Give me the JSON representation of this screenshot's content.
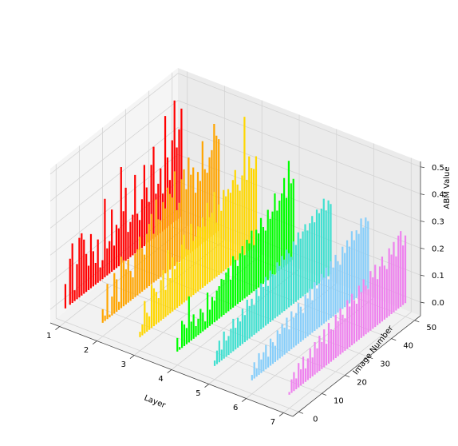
{
  "chart_data": {
    "type": "bar",
    "projection": "3d",
    "xlabel": "Layer",
    "ylabel": "Image Number",
    "zlabel": "ABM Value",
    "xticks": [
      "1",
      "2",
      "3",
      "4",
      "5",
      "6",
      "7"
    ],
    "yticks": [
      "0",
      "10",
      "20",
      "30",
      "40",
      "50"
    ],
    "zticks": [
      "0.0",
      "0.1",
      "0.2",
      "0.3",
      "0.4",
      "0.5"
    ],
    "xlim": [
      0.75,
      7.25
    ],
    "ylim": [
      -2.5,
      52.5
    ],
    "zlim": [
      -0.05,
      0.52
    ],
    "grid": true,
    "series": [
      {
        "layer": 1,
        "color": "#ff0000",
        "values": [
          0.09,
          0.0,
          0.17,
          0.22,
          0.04,
          0.13,
          0.22,
          0.23,
          0.2,
          0.14,
          0.09,
          0.2,
          0.13,
          0.08,
          0.16,
          0.05,
          0.07,
          0.29,
          0.1,
          0.12,
          0.23,
          0.09,
          0.16,
          0.14,
          0.36,
          0.19,
          0.27,
          0.1,
          0.13,
          0.15,
          0.29,
          0.14,
          0.11,
          0.18,
          0.3,
          0.21,
          0.15,
          0.28,
          0.34,
          0.16,
          0.19,
          0.24,
          0.14,
          0.42,
          0.26,
          0.17,
          0.31,
          0.45,
          0.27,
          0.33,
          0.4
        ]
      },
      {
        "layer": 2,
        "color": "#ffa500",
        "values": [
          0.05,
          0.02,
          0.13,
          0.01,
          0.07,
          0.15,
          0.12,
          0.03,
          0.19,
          0.17,
          0.13,
          0.16,
          0.11,
          0.08,
          0.16,
          0.17,
          0.21,
          0.16,
          0.13,
          0.2,
          0.23,
          0.26,
          0.18,
          0.3,
          0.22,
          0.21,
          0.27,
          0.24,
          0.31,
          0.28,
          0.26,
          0.35,
          0.2,
          0.22,
          0.3,
          0.33,
          0.25,
          0.36,
          0.29,
          0.31,
          0.21,
          0.28,
          0.24,
          0.38,
          0.27,
          0.25,
          0.3,
          0.32,
          0.41,
          0.36,
          0.34
        ]
      },
      {
        "layer": 3,
        "color": "#ffd700",
        "values": [
          0.02,
          0.04,
          0.12,
          0.07,
          0.05,
          0.16,
          0.14,
          0.12,
          0.09,
          0.15,
          0.18,
          0.1,
          0.24,
          0.13,
          0.2,
          0.15,
          0.17,
          0.16,
          0.22,
          0.25,
          0.19,
          0.18,
          0.27,
          0.2,
          0.21,
          0.24,
          0.23,
          0.26,
          0.22,
          0.3,
          0.24,
          0.25,
          0.32,
          0.2,
          0.26,
          0.23,
          0.3,
          0.27,
          0.29,
          0.27,
          0.31,
          0.34,
          0.28,
          0.25,
          0.3,
          0.51,
          0.27,
          0.35,
          0.3,
          0.29,
          0.33
        ]
      },
      {
        "layer": 4,
        "color": "#00ff00",
        "values": [
          0.05,
          0.01,
          0.1,
          0.08,
          0.06,
          0.17,
          0.07,
          0.09,
          0.04,
          0.06,
          0.09,
          0.07,
          0.03,
          0.13,
          0.06,
          0.1,
          0.08,
          0.11,
          0.12,
          0.14,
          0.13,
          0.15,
          0.16,
          0.11,
          0.19,
          0.17,
          0.14,
          0.18,
          0.2,
          0.16,
          0.21,
          0.19,
          0.23,
          0.17,
          0.22,
          0.2,
          0.25,
          0.21,
          0.19,
          0.26,
          0.22,
          0.24,
          0.3,
          0.23,
          0.26,
          0.28,
          0.33,
          0.25,
          0.38,
          0.29,
          0.3
        ]
      },
      {
        "layer": 5,
        "color": "#40e0d0",
        "values": [
          0.02,
          0.05,
          0.08,
          0.04,
          0.1,
          0.06,
          0.07,
          0.09,
          0.12,
          0.08,
          0.11,
          0.09,
          0.13,
          0.1,
          0.15,
          0.12,
          0.14,
          0.11,
          0.16,
          0.13,
          0.17,
          0.15,
          0.18,
          0.14,
          0.19,
          0.17,
          0.16,
          0.2,
          0.18,
          0.21,
          0.19,
          0.22,
          0.2,
          0.18,
          0.23,
          0.21,
          0.25,
          0.22,
          0.24,
          0.26,
          0.23,
          0.25,
          0.27,
          0.24,
          0.28,
          0.26,
          0.27,
          0.3,
          0.25,
          0.28,
          0.26
        ]
      },
      {
        "layer": 6,
        "color": "#87cefa",
        "values": [
          0.02,
          0.06,
          0.03,
          0.08,
          0.05,
          0.07,
          0.09,
          0.04,
          0.1,
          0.08,
          0.06,
          0.11,
          0.09,
          0.12,
          0.1,
          0.13,
          0.08,
          0.14,
          0.11,
          0.12,
          0.15,
          0.13,
          0.1,
          0.16,
          0.14,
          0.17,
          0.12,
          0.18,
          0.15,
          0.16,
          0.19,
          0.17,
          0.2,
          0.15,
          0.21,
          0.18,
          0.22,
          0.19,
          0.17,
          0.23,
          0.2,
          0.24,
          0.21,
          0.26,
          0.22,
          0.25,
          0.23,
          0.28,
          0.24,
          0.27,
          0.25
        ]
      },
      {
        "layer": 7,
        "color": "#ee82ee",
        "values": [
          0.01,
          0.05,
          0.07,
          0.04,
          0.09,
          0.06,
          0.1,
          0.05,
          0.08,
          0.11,
          0.07,
          0.12,
          0.09,
          0.13,
          0.1,
          0.14,
          0.08,
          0.15,
          0.12,
          0.11,
          0.16,
          0.13,
          0.17,
          0.14,
          0.12,
          0.18,
          0.15,
          0.19,
          0.16,
          0.14,
          0.2,
          0.17,
          0.21,
          0.18,
          0.16,
          0.22,
          0.19,
          0.23,
          0.17,
          0.21,
          0.24,
          0.2,
          0.18,
          0.25,
          0.22,
          0.26,
          0.2,
          0.27,
          0.28,
          0.22,
          0.25
        ]
      }
    ]
  }
}
